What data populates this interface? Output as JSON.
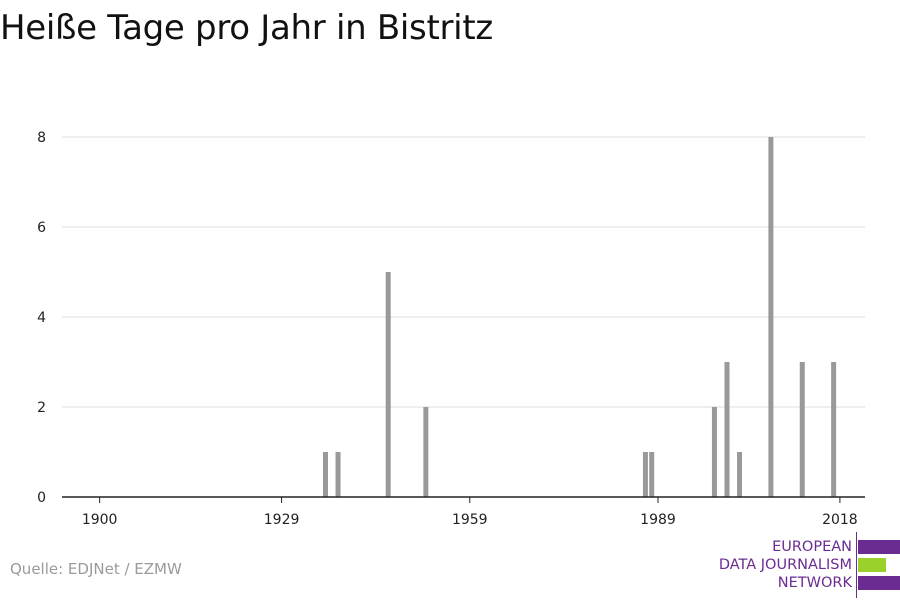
{
  "title": "Heiße Tage pro Jahr in Bistritz",
  "source": "Quelle: EDJNet / EZMW",
  "logo": {
    "lines": [
      "EUROPEAN",
      "DATA JOURNALISM",
      "NETWORK"
    ],
    "colors": {
      "purple": "#6a2c91",
      "green": "#9ad12a"
    }
  },
  "chart_data": {
    "type": "bar",
    "title": "Heiße Tage pro Jahr in Bistritz",
    "xlabel": "",
    "ylabel": "",
    "xlim": [
      1894,
      2022
    ],
    "ylim": [
      0,
      9
    ],
    "x_ticks": [
      1900,
      1929,
      1959,
      1989,
      2018
    ],
    "y_ticks": [
      0,
      2,
      4,
      6,
      8
    ],
    "grid": true,
    "bar_color": "#999999",
    "x": [
      1936,
      1938,
      1946,
      1952,
      1987,
      1988,
      1998,
      2000,
      2002,
      2007,
      2012,
      2017
    ],
    "values": [
      1,
      1,
      5,
      2,
      1,
      1,
      2,
      3,
      1,
      8,
      3,
      3
    ]
  }
}
